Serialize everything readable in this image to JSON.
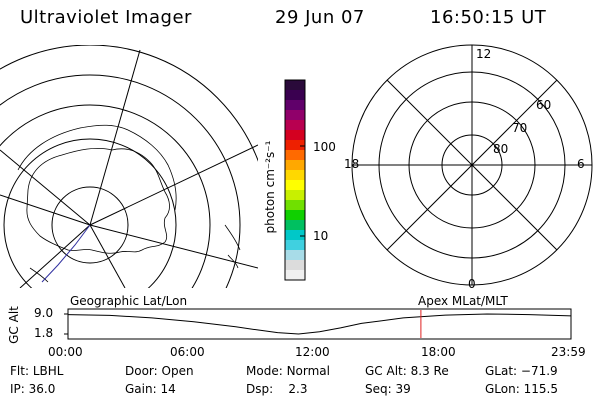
{
  "header": {
    "instrument": "Ultraviolet Imager",
    "date": "29 Jun 07",
    "time": "16:50:15 UT"
  },
  "colorbar": {
    "unit_label": "photon cm⁻²s⁻¹",
    "ticks": [
      "100",
      "10"
    ],
    "colors": [
      "#2a0a3a",
      "#3a0050",
      "#60006a",
      "#90006a",
      "#b80050",
      "#d40020",
      "#ee2000",
      "#ff6a00",
      "#ffa800",
      "#ffd800",
      "#ffff00",
      "#c8f000",
      "#70e000",
      "#10d000",
      "#00c060",
      "#00c8c8",
      "#40d0e0",
      "#a8dce8",
      "#dcdcdc",
      "#f0f0f0"
    ]
  },
  "geo_map": {
    "title": "Geographic Lat/Lon"
  },
  "polar_plot": {
    "title": "Apex MLat/MLT",
    "mlt_labels": {
      "top": "12",
      "left": "18",
      "right": "6",
      "bottom": "0"
    },
    "lat_labels": [
      "60",
      "70",
      "80"
    ]
  },
  "timeline": {
    "ylabel": "GC Alt",
    "y_ticks": [
      "9.0",
      "1.8"
    ],
    "x_ticks": [
      "00:00",
      "06:00",
      "12:00",
      "18:00",
      "23:59"
    ],
    "current_time_hours": 16.84,
    "altitude_curve": {
      "hours": [
        0,
        2,
        4,
        6,
        8,
        9,
        10,
        11,
        12,
        13,
        14,
        16,
        18,
        20,
        22,
        24
      ],
      "gc_alt_re": [
        8.8,
        8.5,
        7.6,
        6.2,
        4.4,
        3.3,
        2.3,
        1.8,
        2.6,
        4.0,
        5.6,
        7.6,
        8.6,
        9.0,
        8.8,
        8.3
      ],
      "y_range_re": [
        1.8,
        9.0
      ]
    }
  },
  "info": {
    "row1": [
      {
        "label": "Flt:",
        "value": "LBHL"
      },
      {
        "label": "Door:",
        "value": "Open"
      },
      {
        "label": "Mode:",
        "value": "Normal"
      },
      {
        "label": "GC Alt:",
        "value": "8.3 Re"
      },
      {
        "label": "GLat:",
        "value": "−71.9"
      }
    ],
    "row2": [
      {
        "label": "IP:",
        "value": "36.0"
      },
      {
        "label": "Gain:",
        "value": "14"
      },
      {
        "label": "Dsp:",
        "value": "2.3"
      },
      {
        "label": "Seq:",
        "value": "39"
      },
      {
        "label": "GLon:",
        "value": "115.5"
      }
    ]
  }
}
